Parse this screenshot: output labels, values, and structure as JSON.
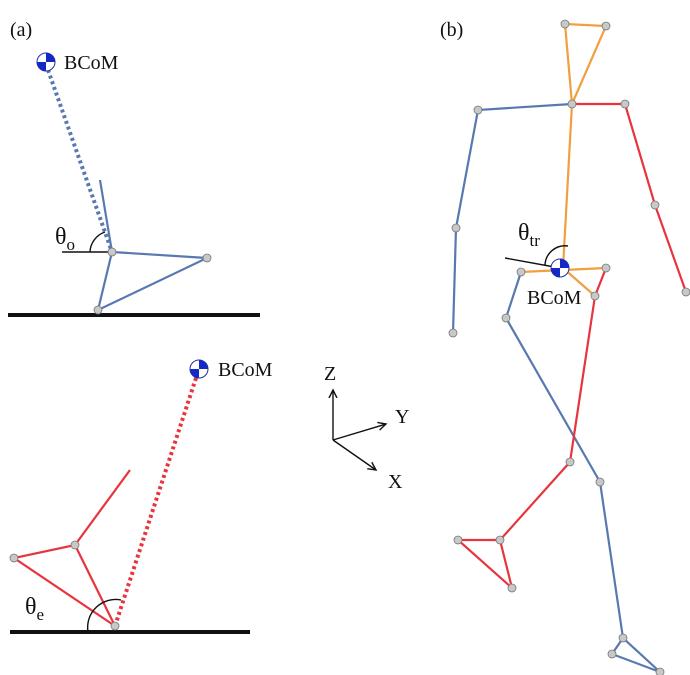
{
  "panel_a": {
    "label": "(a)",
    "top": {
      "com_label": "BCoM",
      "angle": {
        "symbol": "θ",
        "sub": "o"
      }
    },
    "bottom": {
      "com_label": "BCoM",
      "angle": {
        "symbol": "θ",
        "sub": "e"
      }
    }
  },
  "axes": {
    "z": "Z",
    "y": "Y",
    "x": "X"
  },
  "panel_b": {
    "label": "(b)",
    "com_label": "BCoM",
    "angle": {
      "symbol": "θ",
      "sub": "tr"
    }
  }
}
